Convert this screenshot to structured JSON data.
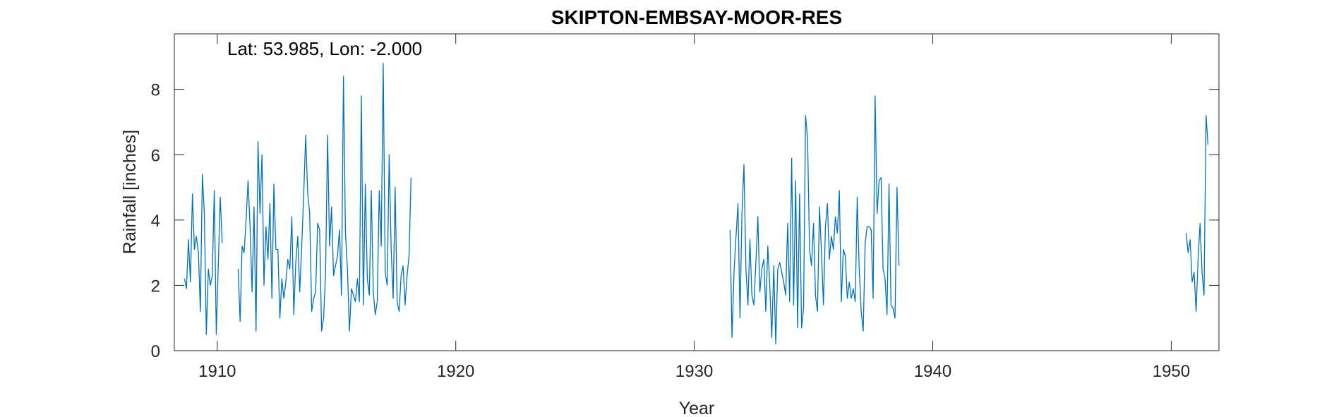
{
  "chart_data": {
    "type": "line",
    "title": "SKIPTON-EMBSAY-MOOR-RES",
    "xlabel": "Year",
    "ylabel": "Rainfall [inches]",
    "annotation": "Lat: 53.985, Lon: -2.000",
    "xlim": [
      1908.2,
      1952.0
    ],
    "ylim": [
      0,
      9.7
    ],
    "xticks": [
      1910,
      1920,
      1930,
      1940,
      1950
    ],
    "yticks": [
      0,
      2,
      4,
      6,
      8
    ],
    "grid": false,
    "line_color": "#0072BD",
    "series": [
      {
        "segments": [
          {
            "start": 1908.625,
            "values": [
              2.2,
              1.9,
              3.4,
              2.1,
              4.8,
              3.1,
              3.5,
              3.0,
              1.2,
              5.4,
              4.2,
              0.5,
              2.5,
              2.0,
              2.3,
              4.9,
              0.5,
              2.6,
              4.7,
              3.3
            ]
          },
          {
            "start": 1910.875,
            "values": [
              2.5,
              0.9,
              3.2,
              3.0,
              4.0,
              5.2,
              3.8,
              1.8,
              4.4,
              0.6,
              6.4,
              4.2,
              6.0,
              2.0,
              3.8,
              2.8,
              4.5,
              1.6,
              5.1,
              3.1,
              3.1,
              1.0,
              2.2,
              1.6,
              2.1,
              2.8,
              2.5,
              4.1,
              1.1,
              2.7,
              3.5,
              1.8,
              3.2,
              4.8,
              6.6,
              4.8,
              4.2,
              1.2,
              1.6,
              1.8,
              3.9,
              3.7,
              0.6,
              1.0,
              2.4,
              6.6,
              3.2,
              4.4,
              2.3,
              2.6,
              2.9,
              3.7,
              1.7,
              8.4,
              3.6,
              2.5,
              0.6,
              1.9,
              1.7,
              1.5,
              2.2,
              1.5,
              7.8,
              1.4,
              5.1,
              2.2,
              1.7,
              4.9,
              1.8,
              1.1,
              1.5,
              4.9,
              3.2,
              8.8,
              2.4,
              2.0,
              6.0,
              3.1,
              1.6,
              5.0,
              1.5,
              1.2,
              2.3,
              2.6,
              1.4,
              2.3,
              2.9,
              5.3
            ]
          },
          {
            "start": 1931.5,
            "values": [
              3.7,
              0.4,
              2.4,
              3.5,
              4.5,
              1.0,
              4.2,
              5.7,
              2.5,
              1.4,
              3.4,
              1.7,
              1.4,
              2.7,
              4.1,
              1.8,
              2.5,
              2.8,
              1.2,
              3.2,
              2.0,
              0.4,
              2.6,
              0.2,
              2.5,
              2.7,
              2.4,
              2.1,
              1.7,
              3.9,
              1.5,
              5.9,
              1.4,
              5.2,
              0.7,
              4.8,
              0.7,
              1.3,
              7.2,
              6.5,
              3.1,
              2.6,
              3.9,
              1.7,
              1.2,
              4.4,
              3.0,
              1.4,
              3.8,
              4.5,
              2.8,
              3.5,
              3.1,
              4.1,
              3.6,
              4.9,
              1.5,
              3.1,
              2.9,
              1.6,
              2.1,
              1.6,
              1.9,
              1.5,
              4.7,
              2.5,
              1.2,
              0.6,
              3.3,
              3.8,
              3.8,
              3.7,
              1.6,
              7.8,
              4.2,
              5.2,
              5.3,
              2.5,
              2.2,
              1.1,
              5.1,
              1.4,
              1.3,
              1.0,
              5.0,
              2.6
            ]
          },
          {
            "start": 1950.625,
            "values": [
              3.6,
              3.0,
              3.4,
              2.1,
              2.4,
              1.2,
              2.8,
              3.9,
              2.4,
              1.7,
              7.2,
              6.3
            ]
          }
        ],
        "step": 0.0833333
      }
    ]
  }
}
